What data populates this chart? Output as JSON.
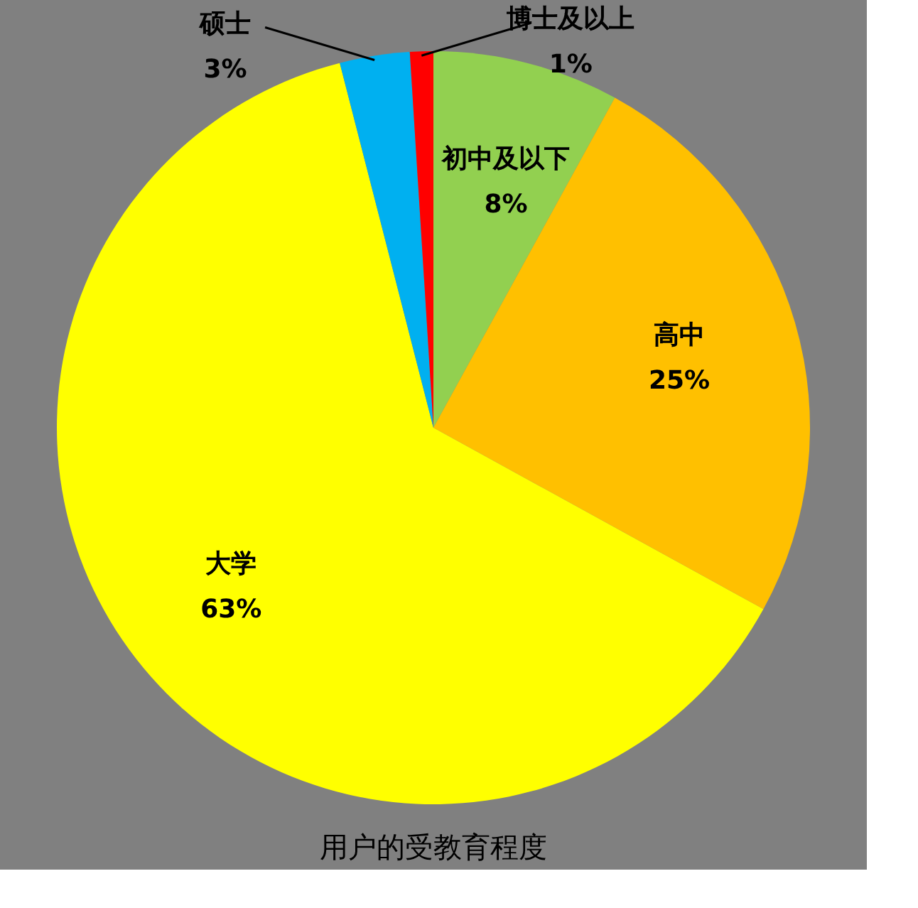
{
  "chart_data": {
    "type": "pie",
    "title": "用户的受教育程度",
    "categories": [
      "初中及以下",
      "高中",
      "大学",
      "硕士",
      "博士及以上"
    ],
    "values": [
      8,
      25,
      63,
      3,
      1
    ],
    "value_labels": [
      "8%",
      "25%",
      "63%",
      "3%",
      "1%"
    ],
    "colors": [
      "#92d050",
      "#ffc000",
      "#ffff00",
      "#00b0f0",
      "#ff0000"
    ],
    "legend": false
  }
}
